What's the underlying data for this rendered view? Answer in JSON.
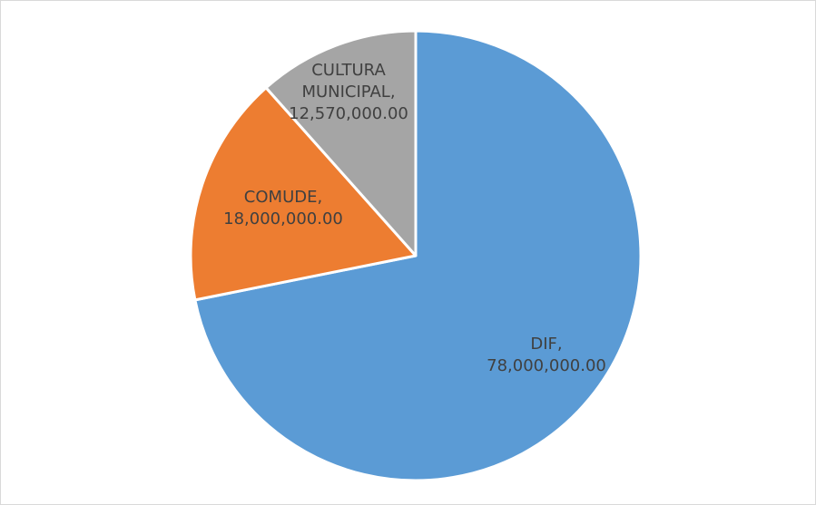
{
  "chart_data": {
    "type": "pie",
    "title": "",
    "start_angle_deg": 0,
    "direction": "clockwise",
    "legend": "none",
    "slices": [
      {
        "label": "DIF",
        "value": 78000000.0,
        "value_text": "78,000,000.00",
        "color": "#5B9BD5",
        "label_lines": [
          "DIF,",
          "78,000,000.00"
        ]
      },
      {
        "label": "COMUDE",
        "value": 18000000.0,
        "value_text": "18,000,000.00",
        "color": "#ED7D31",
        "label_lines": [
          "COMUDE,",
          "18,000,000.00"
        ]
      },
      {
        "label": "CULTURA MUNICIPAL",
        "value": 12570000.0,
        "value_text": "12,570,000.00",
        "color": "#A5A5A5",
        "label_lines": [
          "CULTURA",
          "MUNICIPAL,",
          "12,570,000.00"
        ]
      }
    ]
  }
}
